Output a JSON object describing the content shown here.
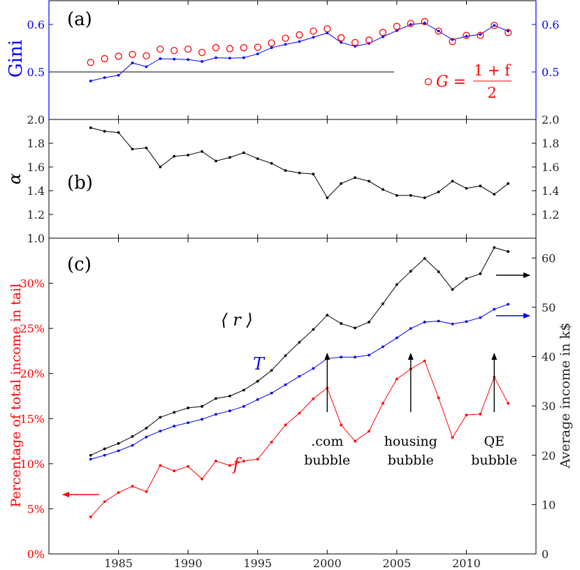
{
  "chart_data": [
    {
      "type": "line",
      "panel_label": "(a)",
      "ylabel": "Gini",
      "ylim": [
        0.4,
        0.65
      ],
      "yticks": [
        0.5,
        0.6
      ],
      "ytick_labels": [
        "0.5",
        "0.6"
      ],
      "reference_line": 0.5,
      "x": [
        1983,
        1984,
        1985,
        1986,
        1987,
        1988,
        1989,
        1990,
        1991,
        1992,
        1993,
        1994,
        1995,
        1996,
        1997,
        1998,
        1999,
        2000,
        2001,
        2002,
        2003,
        2004,
        2005,
        2006,
        2007,
        2008,
        2009,
        2010,
        2011,
        2012,
        2013
      ],
      "series": [
        {
          "name": "Gini",
          "style": "line-dots",
          "color": "#0000ff",
          "values": [
            0.481,
            0.488,
            0.493,
            0.519,
            0.511,
            0.528,
            0.527,
            0.526,
            0.522,
            0.53,
            0.529,
            0.53,
            0.538,
            0.551,
            0.558,
            0.564,
            0.573,
            0.582,
            0.562,
            0.554,
            0.56,
            0.574,
            0.587,
            0.6,
            0.603,
            0.586,
            0.568,
            0.575,
            0.579,
            0.598,
            0.586
          ]
        },
        {
          "name": "G = (1+f)/2",
          "style": "circles",
          "color": "#ff0000",
          "values": [
            0.52,
            0.528,
            0.533,
            0.537,
            0.534,
            0.548,
            0.545,
            0.548,
            0.541,
            0.551,
            0.549,
            0.551,
            0.552,
            0.561,
            0.571,
            0.578,
            0.586,
            0.591,
            0.572,
            0.562,
            0.567,
            0.583,
            0.596,
            0.602,
            0.606,
            0.586,
            0.564,
            0.577,
            0.577,
            0.598,
            0.583
          ]
        }
      ],
      "legend": {
        "prefix": "G =",
        "numerator": "1 + f",
        "denominator": "2"
      }
    },
    {
      "type": "line",
      "panel_label": "(b)",
      "ylabel": "α",
      "ylim": [
        1.0,
        2.0
      ],
      "yticks": [
        1.2,
        1.4,
        1.6,
        1.8,
        2.0
      ],
      "ytick_labels": [
        "1.2",
        "1.4",
        "1.6",
        "1.8",
        "2.0"
      ],
      "x": [
        1983,
        1984,
        1985,
        1986,
        1987,
        1988,
        1989,
        1990,
        1991,
        1992,
        1993,
        1994,
        1995,
        1996,
        1997,
        1998,
        1999,
        2000,
        2001,
        2002,
        2003,
        2004,
        2005,
        2006,
        2007,
        2008,
        2009,
        2010,
        2011,
        2012,
        2013
      ],
      "series": [
        {
          "name": "alpha",
          "color": "#000000",
          "values": [
            1.93,
            1.9,
            1.89,
            1.75,
            1.76,
            1.6,
            1.69,
            1.7,
            1.73,
            1.65,
            1.68,
            1.72,
            1.67,
            1.63,
            1.57,
            1.55,
            1.54,
            1.34,
            1.46,
            1.51,
            1.48,
            1.41,
            1.36,
            1.36,
            1.34,
            1.39,
            1.48,
            1.42,
            1.44,
            1.37,
            1.46
          ]
        }
      ]
    },
    {
      "type": "line",
      "panel_label": "(c)",
      "xlim": [
        1980,
        2015
      ],
      "xticks": [
        1985,
        1990,
        1995,
        2000,
        2005,
        2010
      ],
      "xtick_labels": [
        "1985",
        "1990",
        "1995",
        "2000",
        "2005",
        "2010"
      ],
      "ylabel": "Percentage of total income in tail",
      "ylim": [
        0,
        35
      ],
      "yticks": [
        0,
        5,
        10,
        15,
        20,
        25,
        30
      ],
      "ytick_labels": [
        "0%",
        "5%",
        "10%",
        "15%",
        "20%",
        "25%",
        "30%"
      ],
      "y2label": "Average income in k$",
      "y2lim": [
        0,
        64
      ],
      "y2ticks": [
        0,
        10,
        20,
        30,
        40,
        50,
        60
      ],
      "y2tick_labels": [
        "0",
        "10",
        "20",
        "30",
        "40",
        "50",
        "60"
      ],
      "x": [
        1983,
        1984,
        1985,
        1986,
        1987,
        1988,
        1989,
        1990,
        1991,
        1992,
        1993,
        1994,
        1995,
        1996,
        1997,
        1998,
        1999,
        2000,
        2001,
        2002,
        2003,
        2004,
        2005,
        2006,
        2007,
        2008,
        2009,
        2010,
        2011,
        2012,
        2013
      ],
      "series": [
        {
          "name": "f",
          "label": "f",
          "axis": "left",
          "color": "#ff0000",
          "values": [
            4.1,
            5.8,
            6.8,
            7.5,
            6.9,
            9.8,
            9.2,
            9.7,
            8.3,
            10.3,
            9.8,
            10.3,
            10.5,
            12.4,
            14.3,
            15.6,
            17.2,
            18.4,
            14.3,
            12.5,
            13.6,
            16.7,
            19.4,
            20.5,
            21.4,
            17.3,
            12.9,
            15.4,
            15.5,
            19.6,
            16.7
          ]
        },
        {
          "name": "T",
          "label": "T",
          "axis": "right",
          "color": "#0000ff",
          "values": [
            19.2,
            20.0,
            20.9,
            22.0,
            23.7,
            24.9,
            25.9,
            26.6,
            27.3,
            28.3,
            29.0,
            29.9,
            31.3,
            32.6,
            34.3,
            36.0,
            37.6,
            39.6,
            39.9,
            39.9,
            40.3,
            42.0,
            43.8,
            45.7,
            47.0,
            47.2,
            46.6,
            47.1,
            47.9,
            49.6,
            50.6
          ]
        },
        {
          "name": "<r>",
          "label": "⟨ r ⟩",
          "axis": "right",
          "color": "#000000",
          "values": [
            20.0,
            21.3,
            22.4,
            23.8,
            25.5,
            27.7,
            28.7,
            29.6,
            29.9,
            31.5,
            32.0,
            33.2,
            35.0,
            37.2,
            40.2,
            42.9,
            45.5,
            48.4,
            46.7,
            45.8,
            47.0,
            50.7,
            54.6,
            57.3,
            59.9,
            57.2,
            53.6,
            55.8,
            56.8,
            62.1,
            61.3
          ]
        }
      ],
      "annotations": [
        {
          "text_lines": [
            ".com",
            "bubble"
          ],
          "year": 2000
        },
        {
          "text_lines": [
            "housing",
            "bubble"
          ],
          "year": 2006
        },
        {
          "text_lines": [
            "QE",
            "bubble"
          ],
          "year": 2012
        }
      ],
      "axis_arrows": [
        {
          "series": "f",
          "direction": "left",
          "color": "#ff0000"
        },
        {
          "series": "<r>",
          "direction": "right",
          "color": "#000000"
        },
        {
          "series": "T",
          "direction": "right",
          "color": "#0000ff"
        }
      ]
    }
  ]
}
